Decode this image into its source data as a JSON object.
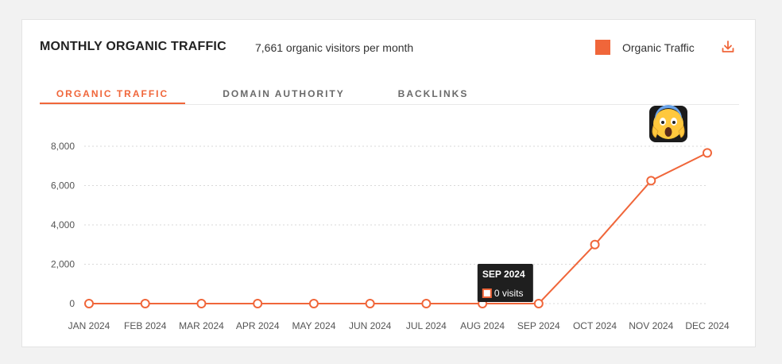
{
  "header": {
    "title": "MONTHLY ORGANIC TRAFFIC",
    "subtitle": "7,661 organic visitors per month",
    "legend_label": "Organic Traffic"
  },
  "tabs": [
    {
      "label": "ORGANIC TRAFFIC",
      "active": true
    },
    {
      "label": "DOMAIN AUTHORITY",
      "active": false
    },
    {
      "label": "BACKLINKS",
      "active": false
    }
  ],
  "colors": {
    "accent": "#f0663a",
    "grid": "#d9d9d9",
    "tooltip_bg": "#1f1f1f"
  },
  "icons": {
    "download": "download-icon",
    "emoji": "screaming-face-emoji"
  },
  "tooltip": {
    "title": "SEP 2024",
    "value_text": "0 visits",
    "index": 8
  },
  "chart_data": {
    "type": "line",
    "title": "MONTHLY ORGANIC TRAFFIC",
    "categories": [
      "JAN 2024",
      "FEB 2024",
      "MAR 2024",
      "APR 2024",
      "MAY 2024",
      "JUN 2024",
      "JUL 2024",
      "AUG 2024",
      "SEP 2024",
      "OCT 2024",
      "NOV 2024",
      "DEC 2024"
    ],
    "series": [
      {
        "name": "Organic Traffic",
        "values": [
          0,
          0,
          0,
          0,
          0,
          0,
          0,
          0,
          0,
          3000,
          6250,
          7661
        ]
      }
    ],
    "ylim": [
      0,
      8000
    ],
    "yticks": [
      "0",
      "2,000",
      "4,000",
      "6,000",
      "8,000"
    ],
    "ytick_values": [
      0,
      2000,
      4000,
      6000,
      8000
    ],
    "grid": true,
    "legend": "top-right"
  }
}
